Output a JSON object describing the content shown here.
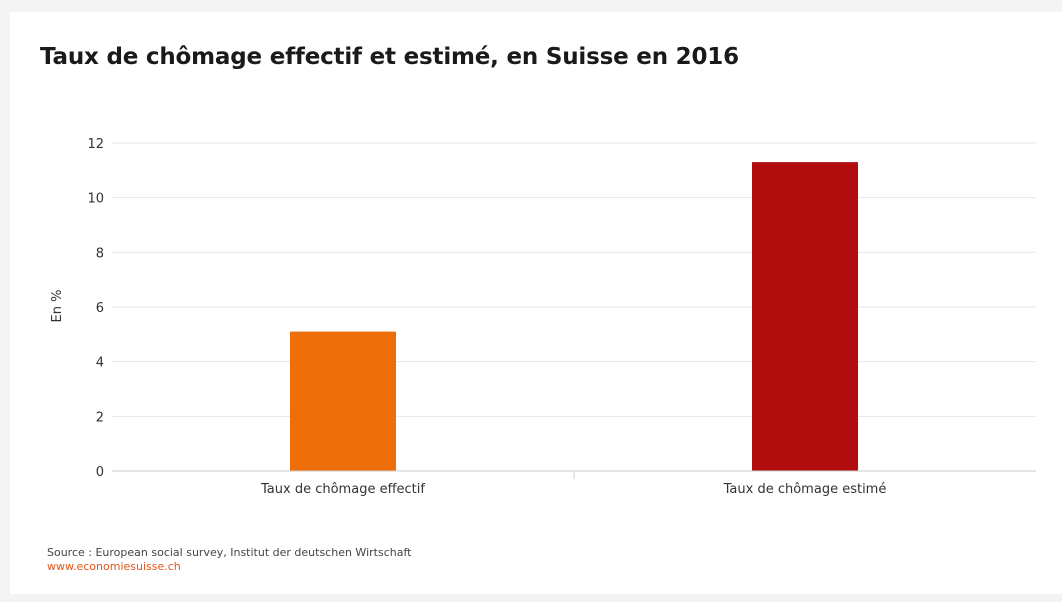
{
  "chart_data": {
    "type": "bar",
    "title": "Taux de chômage effectif et estimé, en Suisse en 2016",
    "ylabel": "En %",
    "xlabel": "",
    "categories": [
      "Taux de chômage effectif",
      "Taux de chômage estimé"
    ],
    "values": [
      5.1,
      11.3
    ],
    "bar_colors": [
      "#ee6f0a",
      "#b10d0f"
    ],
    "yticks": [
      0,
      2,
      4,
      6,
      8,
      10,
      12
    ],
    "ylim": [
      0,
      12
    ],
    "grid": true,
    "legend": "none"
  },
  "footer": {
    "source": "Source : European social survey, Institut der deutschen Wirtschaft",
    "url": "www.economiesuisse.ch"
  },
  "colors": {
    "background": "#f4f4f4",
    "card": "#ffffff",
    "gridline": "#e6e6e6",
    "link": "#e2551b"
  }
}
